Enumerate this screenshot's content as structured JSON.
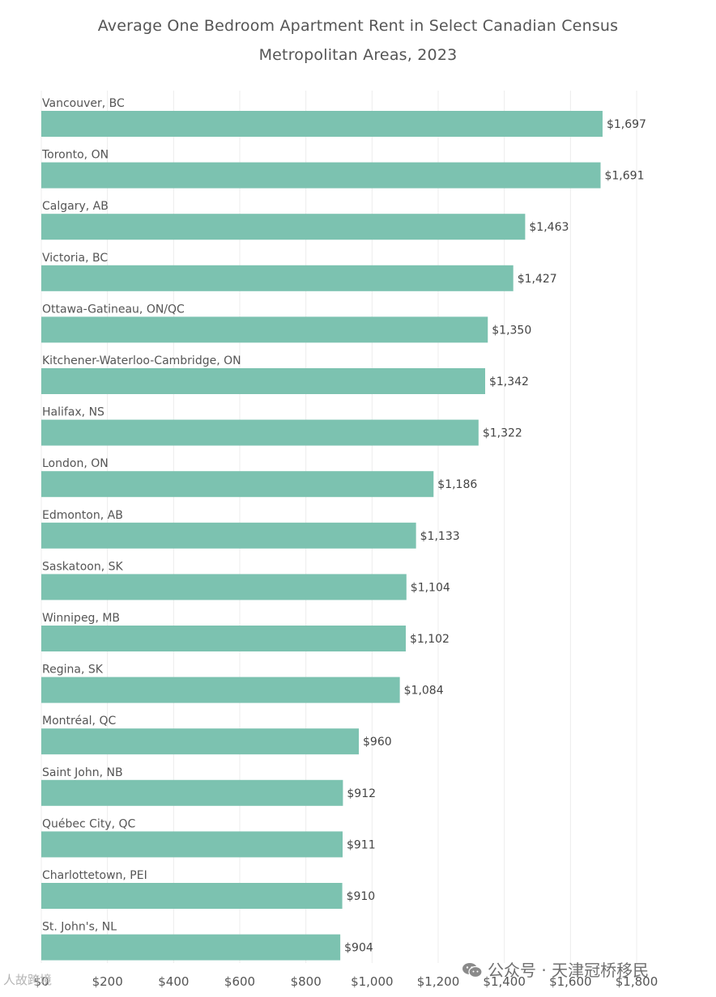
{
  "chart_data": {
    "type": "bar",
    "orientation": "horizontal",
    "title": "Average One Bedroom Apartment Rent in Select Canadian Census Metropolitan Areas, 2023",
    "title_lines": [
      "Average One Bedroom Apartment Rent in Select Canadian Census",
      "Metropolitan Areas, 2023"
    ],
    "categories": [
      "Vancouver, BC",
      "Toronto, ON",
      "Calgary, AB",
      "Victoria, BC",
      "Ottawa-Gatineau, ON/QC",
      "Kitchener-Waterloo-Cambridge, ON",
      "Halifax, NS",
      "London, ON",
      "Edmonton, AB",
      "Saskatoon, SK",
      "Winnipeg, MB",
      "Regina, SK",
      "Montréal, QC",
      "Saint John, NB",
      "Québec City, QC",
      "Charlottetown, PEI",
      "St. John's, NL"
    ],
    "values": [
      1697,
      1691,
      1463,
      1427,
      1350,
      1342,
      1322,
      1186,
      1133,
      1104,
      1102,
      1084,
      960,
      912,
      911,
      910,
      904
    ],
    "value_labels": [
      "$1,697",
      "$1,691",
      "$1,463",
      "$1,427",
      "$1,350",
      "$1,342",
      "$1,322",
      "$1,186",
      "$1,133",
      "$1,104",
      "$1,102",
      "$1,084",
      "$960",
      "$912",
      "$911",
      "$910",
      "$904"
    ],
    "xticks": [
      0,
      200,
      400,
      600,
      800,
      1000,
      1200,
      1400,
      1600,
      1800
    ],
    "xtick_labels": [
      "$0",
      "$200",
      "$400",
      "$600",
      "$800",
      "$1,000",
      "$1,200",
      "$1,400",
      "$1,600",
      "$1,800"
    ],
    "xlim": [
      0,
      1800
    ],
    "xlabel": "",
    "ylabel": "",
    "grid": "vertical",
    "bar_color": "#7cc2b0"
  },
  "watermark": {
    "left": "人故跨境",
    "right": "公众号 · 天津冠桥移民"
  }
}
